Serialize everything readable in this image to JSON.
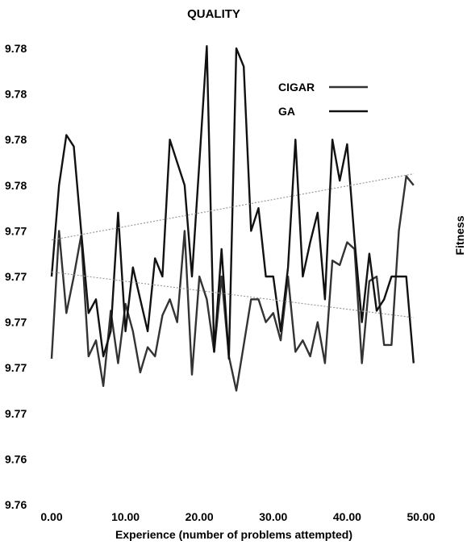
{
  "chart_data": {
    "type": "line",
    "title": "QUALITY",
    "xlabel": "Experience (number of problems attempted)",
    "ylabel": "Fitness",
    "xlim": [
      0,
      50
    ],
    "ylim": [
      9.76,
      9.78
    ],
    "x_ticks": [
      "0.00",
      "10.00",
      "20.00",
      "30.00",
      "40.00",
      "50.00"
    ],
    "y_ticks": [
      "9.76",
      "9.76",
      "9.77",
      "9.77",
      "9.77",
      "9.77",
      "9.77",
      "9.78",
      "9.78",
      "9.78",
      "9.78"
    ],
    "grid": false,
    "legend_position": "top-right",
    "series": [
      {
        "name": "CIGAR",
        "color": "#333333",
        "x": [
          0,
          1,
          2,
          3,
          4,
          5,
          6,
          7,
          8,
          9,
          10,
          11,
          12,
          13,
          14,
          15,
          16,
          17,
          18,
          19,
          20,
          21,
          22,
          23,
          24,
          25,
          26,
          27,
          28,
          29,
          30,
          31,
          32,
          33,
          34,
          35,
          36,
          37,
          38,
          39,
          40,
          41,
          42,
          43,
          44,
          45,
          46,
          47,
          48,
          49
        ],
        "y": [
          9.7664,
          9.772,
          9.7684,
          9.77,
          9.7718,
          9.7665,
          9.7672,
          9.7652,
          9.7685,
          9.7662,
          9.7688,
          9.7676,
          9.7658,
          9.7669,
          9.7665,
          9.7683,
          9.769,
          9.768,
          9.772,
          9.7657,
          9.77,
          9.769,
          9.7667,
          9.77,
          9.7665,
          9.765,
          9.767,
          9.769,
          9.769,
          9.768,
          9.7684,
          9.7672,
          9.77,
          9.7667,
          9.7672,
          9.7665,
          9.768,
          9.7662,
          9.7707,
          9.7705,
          9.7715,
          9.7712,
          9.7662,
          9.7698,
          9.77,
          9.767,
          9.767,
          9.772,
          9.7744,
          9.774
        ]
      },
      {
        "name": "GA",
        "color": "#111111",
        "x": [
          0,
          1,
          2,
          3,
          4,
          5,
          6,
          7,
          8,
          9,
          10,
          11,
          12,
          13,
          14,
          15,
          16,
          17,
          18,
          19,
          20,
          21,
          22,
          23,
          24,
          25,
          26,
          27,
          28,
          29,
          30,
          31,
          32,
          33,
          34,
          35,
          36,
          37,
          38,
          39,
          40,
          41,
          42,
          43,
          44,
          45,
          46,
          47,
          48,
          49
        ],
        "y": [
          9.77,
          9.774,
          9.7762,
          9.7757,
          9.772,
          9.7684,
          9.769,
          9.7665,
          9.7676,
          9.7728,
          9.7676,
          9.7704,
          9.769,
          9.7676,
          9.7708,
          9.77,
          9.776,
          9.775,
          9.774,
          9.77,
          9.775,
          9.7801,
          9.7667,
          9.7712,
          9.7664,
          9.78,
          9.7792,
          9.772,
          9.773,
          9.77,
          9.77,
          9.7676,
          9.7704,
          9.776,
          9.77,
          9.7715,
          9.7728,
          9.769,
          9.776,
          9.7742,
          9.7758,
          9.7716,
          9.768,
          9.771,
          9.7685,
          9.769,
          9.77,
          9.77,
          9.77,
          9.7662
        ]
      },
      {
        "color": "#9a9a9a",
        "dashed": true,
        "x": [
          0,
          49
        ],
        "y": [
          9.7716,
          9.7745
        ]
      },
      {
        "color": "#9a9a9a",
        "dashed": true,
        "x": [
          0,
          49
        ],
        "y": [
          9.7702,
          9.7682
        ]
      }
    ]
  }
}
